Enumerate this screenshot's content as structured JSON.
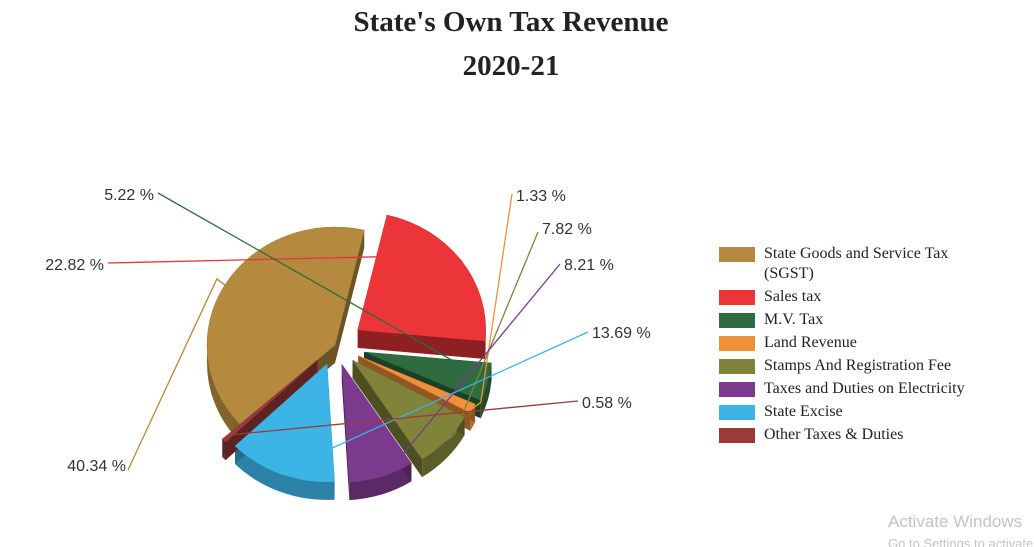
{
  "chart_data": {
    "type": "pie",
    "title": "State's Own Tax Revenue",
    "subtitle": "2020-21",
    "legend_position": "right",
    "slices": [
      {
        "name": "State Goods and Service Tax (SGST)",
        "value": 40.34,
        "label": "40.34 %",
        "color": "#b58a3e"
      },
      {
        "name": "Sales tax",
        "value": 22.82,
        "label": "22.82 %",
        "color": "#ec3538"
      },
      {
        "name": "M.V. Tax",
        "value": 5.22,
        "label": "5.22 %",
        "color": "#2e6b3f"
      },
      {
        "name": "Land Revenue",
        "value": 1.33,
        "label": "1.33 %",
        "color": "#f0913a"
      },
      {
        "name": "Stamps And Registration Fee",
        "value": 7.82,
        "label": "7.82 %",
        "color": "#80833a"
      },
      {
        "name": "Taxes and Duties on Electricity",
        "value": 8.21,
        "label": "8.21 %",
        "color": "#7b3a8e"
      },
      {
        "name": "State Excise",
        "value": 13.69,
        "label": "13.69 %",
        "color": "#3cb4e6"
      },
      {
        "name": "Other Taxes & Duties",
        "value": 0.58,
        "label": "0.58 %",
        "color": "#9b3a3a"
      }
    ]
  },
  "watermark": {
    "line1": "Activate Windows",
    "line2": "Go to Settings to activate Windows."
  }
}
